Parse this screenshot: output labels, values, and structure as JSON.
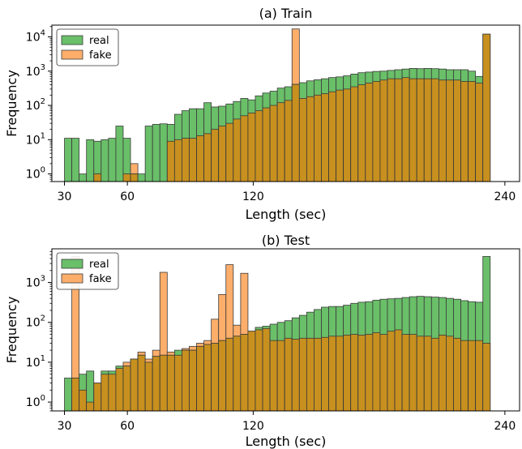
{
  "figure": {
    "colors": {
      "real": "#6abf69",
      "fake": "#fdae6b",
      "overlap": "#c8901e",
      "edge": "#3a3a3a"
    }
  },
  "chart_data": [
    {
      "type": "bar",
      "title": "(a) Train",
      "xlabel": "Length (sec)",
      "ylabel": "Frequency",
      "yscale": "log",
      "xlim": [
        24,
        247
      ],
      "ylim": [
        0.6,
        22000
      ],
      "xticks": [
        30,
        60,
        120,
        240
      ],
      "yticks": [
        {
          "value": 1,
          "base": "10",
          "exp": "0"
        },
        {
          "value": 10,
          "base": "10",
          "exp": "1"
        },
        {
          "value": 100,
          "base": "10",
          "exp": "2"
        },
        {
          "value": 1000,
          "base": "10",
          "exp": "3"
        },
        {
          "value": 10000,
          "base": "10",
          "exp": "4"
        }
      ],
      "bin_start": 30,
      "bin_width": 3.5,
      "legend": {
        "position": "upper-left",
        "entries": [
          "real",
          "fake"
        ]
      },
      "series": [
        {
          "name": "real",
          "values": [
            11,
            11,
            1,
            10,
            9,
            10,
            11,
            25,
            11,
            1,
            1,
            25,
            28,
            29,
            28,
            55,
            70,
            80,
            80,
            120,
            90,
            95,
            110,
            130,
            160,
            145,
            190,
            230,
            260,
            320,
            350,
            410,
            460,
            520,
            560,
            600,
            650,
            680,
            730,
            820,
            900,
            940,
            980,
            1000,
            1050,
            1100,
            1150,
            1200,
            1180,
            1200,
            1180,
            1150,
            1100,
            1100,
            1100,
            1000,
            700,
            12000
          ]
        },
        {
          "name": "fake",
          "values": [
            0,
            0,
            0,
            0,
            1,
            0,
            0,
            0,
            1,
            2,
            0,
            0,
            0,
            0,
            9,
            10,
            11,
            11,
            13,
            15,
            20,
            25,
            30,
            40,
            50,
            60,
            70,
            85,
            100,
            120,
            140,
            17000,
            160,
            180,
            200,
            220,
            250,
            280,
            300,
            350,
            400,
            450,
            500,
            550,
            600,
            600,
            650,
            600,
            600,
            600,
            600,
            550,
            550,
            550,
            500,
            500,
            450,
            12000
          ]
        }
      ]
    },
    {
      "type": "bar",
      "title": "(b) Test",
      "xlabel": "Length (sec)",
      "ylabel": "Frequency",
      "yscale": "log",
      "xlim": [
        24,
        247
      ],
      "ylim": [
        0.6,
        7000
      ],
      "xticks": [
        30,
        60,
        120,
        240
      ],
      "yticks": [
        {
          "value": 1,
          "base": "10",
          "exp": "0"
        },
        {
          "value": 10,
          "base": "10",
          "exp": "1"
        },
        {
          "value": 100,
          "base": "10",
          "exp": "2"
        },
        {
          "value": 1000,
          "base": "10",
          "exp": "3"
        }
      ],
      "bin_start": 30,
      "bin_width": 3.5,
      "legend": {
        "position": "upper-left",
        "entries": [
          "real",
          "fake"
        ]
      },
      "series": [
        {
          "name": "real",
          "values": [
            4,
            4,
            5,
            6,
            3,
            6,
            6,
            8,
            8,
            12,
            15,
            10,
            14,
            15,
            15,
            20,
            20,
            20,
            25,
            28,
            30,
            35,
            40,
            45,
            50,
            60,
            75,
            80,
            90,
            100,
            110,
            130,
            150,
            180,
            210,
            240,
            250,
            250,
            270,
            300,
            320,
            330,
            360,
            380,
            390,
            400,
            420,
            440,
            450,
            440,
            430,
            420,
            400,
            380,
            350,
            330,
            320,
            4500
          ]
        },
        {
          "name": "fake",
          "values": [
            0,
            4500,
            2,
            1,
            3,
            5,
            5,
            7,
            10,
            12,
            18,
            12,
            20,
            1800,
            18,
            15,
            22,
            25,
            30,
            35,
            120,
            500,
            2800,
            85,
            1700,
            60,
            65,
            70,
            35,
            35,
            40,
            38,
            40,
            40,
            40,
            42,
            45,
            45,
            48,
            50,
            48,
            50,
            55,
            50,
            60,
            65,
            50,
            50,
            45,
            45,
            40,
            48,
            45,
            40,
            35,
            35,
            35,
            30
          ]
        }
      ]
    }
  ]
}
